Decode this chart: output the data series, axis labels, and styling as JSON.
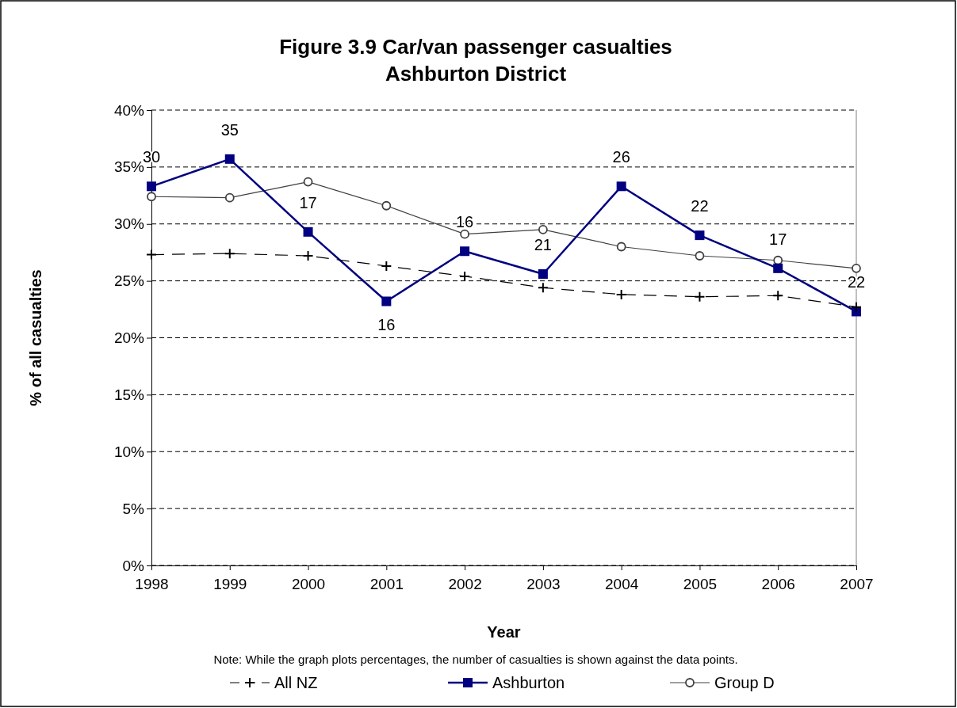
{
  "chart_data": {
    "type": "line",
    "title": "Figure 3.9 Car/van passenger casualties\nAshburton District",
    "xlabel": "Year",
    "ylabel": "% of all casualties",
    "categories": [
      "1998",
      "1999",
      "2000",
      "2001",
      "2002",
      "2003",
      "2004",
      "2005",
      "2006",
      "2007"
    ],
    "ylim": [
      0,
      40
    ],
    "yticks": [
      {
        "value": 0,
        "label": "0%"
      },
      {
        "value": 5,
        "label": "5%"
      },
      {
        "value": 10,
        "label": "10%"
      },
      {
        "value": 15,
        "label": "15%"
      },
      {
        "value": 20,
        "label": "20%"
      },
      {
        "value": 25,
        "label": "25%"
      },
      {
        "value": 30,
        "label": "30%"
      },
      {
        "value": 35,
        "label": "35%"
      },
      {
        "value": 40,
        "label": "40%"
      }
    ],
    "grid": "y",
    "legend": "bottom",
    "annotations": [
      "Note: While the graph plots percentages, the number of casualties is shown against the data points.",
      {
        "text": "30",
        "x": "1998",
        "y": 33.3
      },
      {
        "text": "35",
        "x": "1999",
        "y": 35.7
      },
      {
        "text": "17",
        "x": "2000",
        "y": 29.3
      },
      {
        "text": "16",
        "x": "2001",
        "y": 23.2
      },
      {
        "text": "16",
        "x": "2002",
        "y": 27.6
      },
      {
        "text": "21",
        "x": "2003",
        "y": 25.6
      },
      {
        "text": "26",
        "x": "2004",
        "y": 33.3
      },
      {
        "text": "22",
        "x": "2005",
        "y": 29.0
      },
      {
        "text": "17",
        "x": "2006",
        "y": 26.1
      },
      {
        "text": "22",
        "x": "2007",
        "y": 22.3
      }
    ],
    "series": [
      {
        "name": "All NZ",
        "color": "#000000",
        "marker": "cross",
        "line_style": "dashed",
        "values": [
          27.3,
          27.4,
          27.2,
          26.3,
          25.4,
          24.4,
          23.8,
          23.6,
          23.7,
          22.7
        ]
      },
      {
        "name": "Ashburton",
        "color": "#000080",
        "marker": "square",
        "line_style": "solid",
        "values": [
          33.3,
          35.7,
          29.3,
          23.2,
          27.6,
          25.6,
          33.3,
          29.0,
          26.1,
          22.3
        ]
      },
      {
        "name": "Group D",
        "color": "#404040",
        "marker": "circle",
        "line_style": "solid",
        "values": [
          32.4,
          32.3,
          33.7,
          31.6,
          29.1,
          29.5,
          28.0,
          27.2,
          26.8,
          26.1
        ]
      }
    ]
  }
}
